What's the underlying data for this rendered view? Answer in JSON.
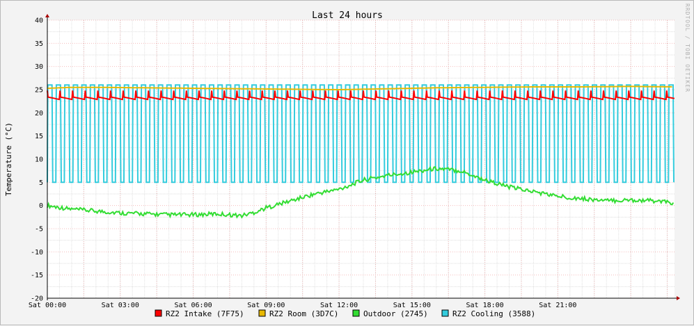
{
  "chart_data": {
    "type": "line",
    "title": "Last 24 hours",
    "ylabel": "Temperature (°C)",
    "xlabel": "",
    "watermark": "RRDTOOL / TOBI OETIKER",
    "ylim": [
      -20,
      40
    ],
    "yticks": [
      -20,
      -15,
      -10,
      -5,
      0,
      5,
      10,
      15,
      20,
      25,
      30,
      35,
      40
    ],
    "xlim_hours": [
      0,
      25.8
    ],
    "xticks": [
      {
        "hour": 0,
        "label": "Sat 00:00"
      },
      {
        "hour": 3,
        "label": "Sat 03:00"
      },
      {
        "hour": 6,
        "label": "Sat 06:00"
      },
      {
        "hour": 9,
        "label": "Sat 09:00"
      },
      {
        "hour": 12,
        "label": "Sat 12:00"
      },
      {
        "hour": 15,
        "label": "Sat 15:00"
      },
      {
        "hour": 18,
        "label": "Sat 18:00"
      },
      {
        "hour": 21,
        "label": "Sat 21:00"
      }
    ],
    "grid": true,
    "legend_position": "bottom",
    "series": [
      {
        "name": "RZ2 Intake (7F75)",
        "color": "#ff0000",
        "pattern": "sawtooth",
        "x": [
          0,
          25.8
        ],
        "low": 22.8,
        "high": 24.8,
        "period_hours": 0.52
      },
      {
        "name": "RZ2 Room (3D7C)",
        "color": "#e8b800",
        "pattern": "smooth",
        "x": [
          0,
          1,
          2,
          4,
          6,
          8,
          10,
          12,
          14,
          16,
          18,
          20,
          22,
          24,
          25.8
        ],
        "values": [
          25.3,
          25.5,
          25.5,
          25.4,
          25.3,
          25.2,
          25.1,
          25.0,
          25.2,
          25.4,
          25.5,
          25.6,
          25.6,
          25.7,
          25.6
        ]
      },
      {
        "name": "Outdoor (2745)",
        "color": "#33dd33",
        "pattern": "noisy",
        "x": [
          0,
          1,
          2,
          3,
          4,
          5,
          6,
          7,
          8,
          8.5,
          9,
          10,
          11,
          12,
          12.5,
          13,
          14,
          15,
          16,
          17,
          18,
          19,
          20,
          21,
          22,
          23,
          24,
          25,
          25.8
        ],
        "values": [
          0.0,
          -0.8,
          -1.2,
          -1.6,
          -1.8,
          -2.0,
          -2.0,
          -1.8,
          -2.2,
          -1.5,
          -0.5,
          1.0,
          2.5,
          3.5,
          4.5,
          5.5,
          6.5,
          7.2,
          8.0,
          7.5,
          5.5,
          4.0,
          3.0,
          2.0,
          1.5,
          1.0,
          1.2,
          1.0,
          0.5
        ]
      },
      {
        "name": "RZ2 Cooling (3588)",
        "color": "#33ccdd",
        "pattern": "square",
        "x": [
          0,
          25.8
        ],
        "low": 5.0,
        "high": 26.0,
        "period_hours": 0.35,
        "duty": 0.55
      }
    ]
  }
}
